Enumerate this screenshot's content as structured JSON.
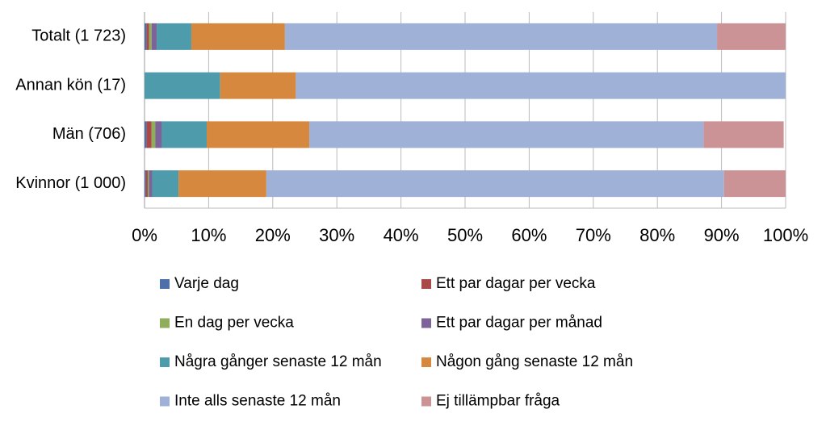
{
  "chart_data": {
    "type": "stacked-bar-horizontal",
    "categories": [
      "Totalt (1 723)",
      "Annan kön (17)",
      "Män (706)",
      "Kvinnor (1 000)"
    ],
    "series": [
      {
        "name": "Varje dag",
        "color": "#4f6fa8",
        "values": [
          0.3,
          0,
          0.3,
          0.2
        ]
      },
      {
        "name": "Ett par dagar per vecka",
        "color": "#a94a48",
        "values": [
          0.4,
          0,
          0.8,
          0.3
        ]
      },
      {
        "name": "En dag per vecka",
        "color": "#8fad5a",
        "values": [
          0.4,
          0,
          0.6,
          0.2
        ]
      },
      {
        "name": "Ett par dagar per månad",
        "color": "#7c649b",
        "values": [
          0.8,
          0,
          1.0,
          0.5
        ]
      },
      {
        "name": "Några gånger senaste 12 mån",
        "color": "#4e9bab",
        "values": [
          5.4,
          11.8,
          7.0,
          4.1
        ]
      },
      {
        "name": "Någon gång senaste 12 mån",
        "color": "#d6893e",
        "values": [
          14.6,
          11.8,
          16.0,
          13.7
        ]
      },
      {
        "name": "Inte alls senaste 12 mån",
        "color": "#9fb1d6",
        "values": [
          67.4,
          76.4,
          61.5,
          71.4
        ]
      },
      {
        "name": "Ej tillämpbar fråga",
        "color": "#cc9396",
        "values": [
          10.7,
          0,
          12.5,
          9.6
        ]
      }
    ],
    "xlim": [
      0,
      100
    ],
    "xticks": [
      {
        "value": 0,
        "label": "0%"
      },
      {
        "value": 10,
        "label": "10%"
      },
      {
        "value": 20,
        "label": "20%"
      },
      {
        "value": 30,
        "label": "30%"
      },
      {
        "value": 40,
        "label": "40%"
      },
      {
        "value": 50,
        "label": "50%"
      },
      {
        "value": 60,
        "label": "60%"
      },
      {
        "value": 70,
        "label": "70%"
      },
      {
        "value": 80,
        "label": "80%"
      },
      {
        "value": 90,
        "label": "90%"
      },
      {
        "value": 100,
        "label": "100%"
      }
    ],
    "grid": true
  }
}
